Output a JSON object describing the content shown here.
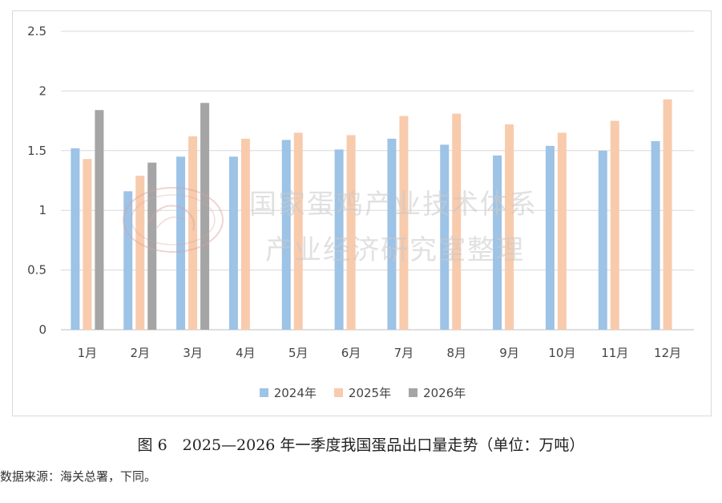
{
  "chart_data": {
    "type": "bar",
    "categories": [
      "1月",
      "2月",
      "3月",
      "4月",
      "5月",
      "6月",
      "7月",
      "8月",
      "9月",
      "10月",
      "11月",
      "12月"
    ],
    "series": [
      {
        "name": "2024年",
        "color": "#9dc3e6",
        "values": [
          1.52,
          1.16,
          1.45,
          1.45,
          1.59,
          1.51,
          1.6,
          1.55,
          1.46,
          1.54,
          1.5,
          1.58
        ]
      },
      {
        "name": "2025年",
        "color": "#f8cbad",
        "values": [
          1.43,
          1.29,
          1.62,
          1.6,
          1.65,
          1.63,
          1.79,
          1.81,
          1.72,
          1.65,
          1.75,
          1.93
        ]
      },
      {
        "name": "2026年",
        "color": "#a5a5a5",
        "values": [
          1.84,
          1.4,
          1.9,
          null,
          null,
          null,
          null,
          null,
          null,
          null,
          null,
          null
        ]
      }
    ],
    "yticks": [
      "0",
      "0.5",
      "1",
      "1.5",
      "2",
      "2.5"
    ],
    "ylim": [
      0,
      2.5
    ],
    "grid": true,
    "legend_position": "bottom"
  },
  "watermark": {
    "line1": "国家蛋鸡产业技术体系",
    "line2": "产业经济研究室整理"
  },
  "caption": "图 6　2025—2026 年一季度我国蛋品出口量走势（单位：万吨）",
  "source": "数据来源：海关总署，下同。"
}
